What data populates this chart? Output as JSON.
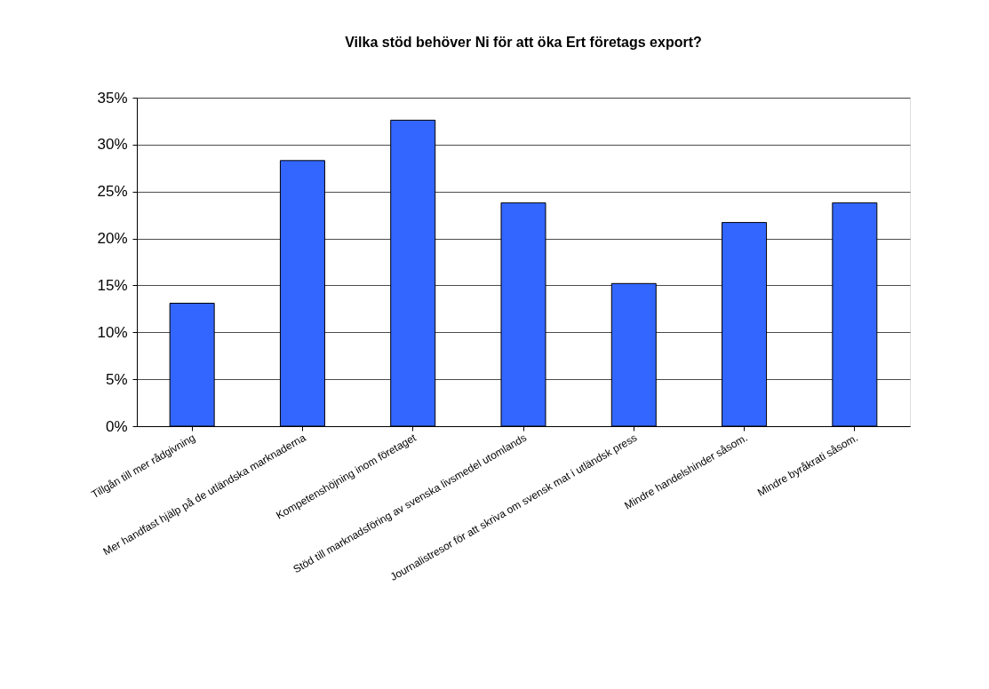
{
  "chart_data": {
    "type": "bar",
    "title": "Vilka stöd behöver Ni för att öka Ert företags export?",
    "categories": [
      "Tillgån till mer rådgivning",
      "Mer handfast hjälp på de utländska marknaderna",
      "Kompetenshöjning inom företaget",
      "Stöd till marknadsföring av svenska livsmedel utomlands",
      "Journalistresor för att skriva om svensk mat i utländsk press",
      "Mindre handelshinder såsom.",
      "Mindre byråkrati såsom."
    ],
    "values": [
      13.1,
      28.3,
      32.6,
      23.8,
      15.2,
      21.7,
      23.8
    ],
    "color": "#3366ff",
    "ylim": [
      0,
      35
    ],
    "yticks": [
      {
        "value": 0,
        "label": "0%"
      },
      {
        "value": 5,
        "label": "5%"
      },
      {
        "value": 10,
        "label": "10%"
      },
      {
        "value": 15,
        "label": "15%"
      },
      {
        "value": 20,
        "label": "20%"
      },
      {
        "value": 25,
        "label": "25%"
      },
      {
        "value": 30,
        "label": "30%"
      },
      {
        "value": 35,
        "label": "35%"
      }
    ],
    "grid": "y"
  }
}
